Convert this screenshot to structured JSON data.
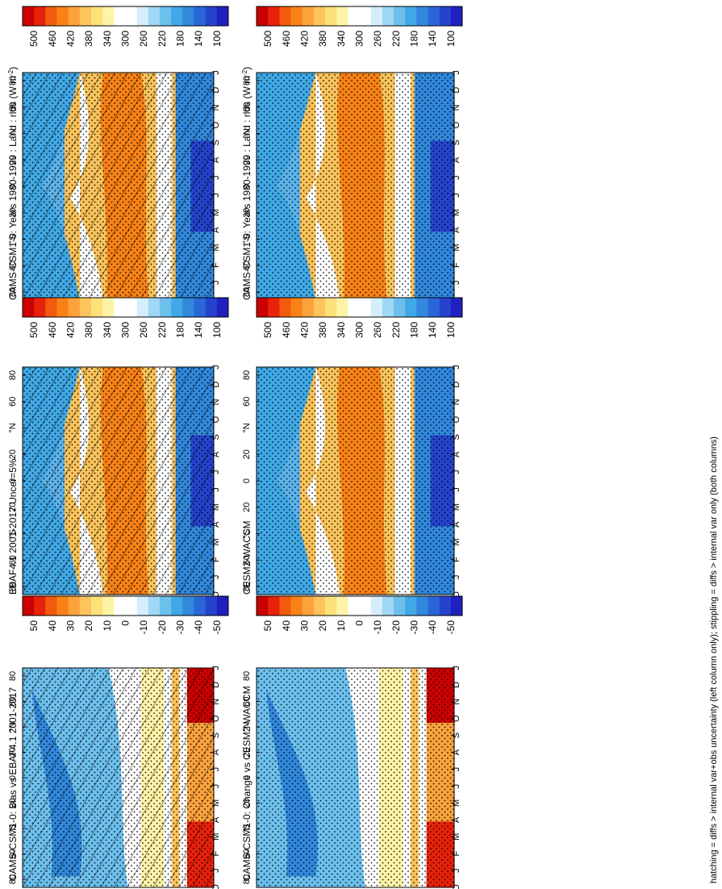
{
  "footnote": "hatching = diffs > internal var+obs uncertainty (left column only); stippling = diffs > internal var only (both columns)",
  "palette_abs": [
    "#cc0000",
    "#e8210a",
    "#f25a0e",
    "#f98216",
    "#fba23c",
    "#fdc45b",
    "#fde07a",
    "#fef3a7",
    "#ffffff",
    "#ffffff",
    "#d6eefc",
    "#9fd7f4",
    "#6cc0ee",
    "#40a8e6",
    "#3188dc",
    "#2a66d8",
    "#2543cf",
    "#2020c0"
  ],
  "palette_diff": [
    "#cc0000",
    "#e8210a",
    "#f25a0e",
    "#f98216",
    "#fba23c",
    "#fdc45b",
    "#fde07a",
    "#fef3a7",
    "#ffffff",
    "#ffffff",
    "#d6eefc",
    "#9fd7f4",
    "#6cc0ee",
    "#40a8e6",
    "#3188dc",
    "#2a66d8",
    "#2543cf",
    "#2020c0"
  ],
  "axes": {
    "month_labels": [
      "D",
      "J",
      "F",
      "M",
      "A",
      "M",
      "J",
      "J",
      "A",
      "S",
      "O",
      "N",
      "D",
      "J"
    ],
    "lat_labels": [
      "80",
      "60",
      "°N",
      "20",
      "0",
      "20",
      "°S",
      "60",
      "80"
    ]
  },
  "chart_data": [
    {
      "type": "heatmap",
      "title": "CAMS-CSM1-0: Years 1980-1999 : Land : rlds (W m",
      "title_sup": "-2",
      "title_end": ")",
      "colorbar_labels": [
        "500",
        "460",
        "420",
        "380",
        "340",
        "300",
        "260",
        "220",
        "180",
        "140",
        "100"
      ],
      "variant": "abs",
      "pattern": "hatch"
    },
    {
      "type": "heatmap",
      "title": "CAMS-CSM1-0: Years 1980-1999 : Land : rlds (W m",
      "title_sup": "-2",
      "title_end": ")",
      "colorbar_labels": [
        "500",
        "460",
        "420",
        "380",
        "340",
        "300",
        "260",
        "220",
        "180",
        "140",
        "100"
      ],
      "variant": "abs",
      "pattern": "stipple"
    },
    {
      "type": "heatmap",
      "title": "EBAF4.1 2001-2017 Uncer=5%",
      "colorbar_labels": [
        "500",
        "460",
        "420",
        "380",
        "340",
        "300",
        "260",
        "220",
        "180",
        "140",
        "100"
      ],
      "variant": "abs",
      "pattern": "hatch"
    },
    {
      "type": "heatmap",
      "title": "CESM2-WACCM",
      "colorbar_labels": [
        "500",
        "460",
        "420",
        "380",
        "340",
        "300",
        "260",
        "220",
        "180",
        "140",
        "100"
      ],
      "variant": "abs",
      "pattern": "stipple"
    },
    {
      "type": "heatmap",
      "title": "CAMS-CSM1-0: Bias vs EBAF4.1 2001-2017",
      "colorbar_labels": [
        "50",
        "40",
        "30",
        "20",
        "10",
        "0",
        "-10",
        "-20",
        "-30",
        "-40",
        "-50"
      ],
      "variant": "diff",
      "pattern": "hatch"
    },
    {
      "type": "heatmap",
      "title": "CAMS-CSM1-0: Change vs CESM2-WACCM",
      "colorbar_labels": [
        "50",
        "40",
        "30",
        "20",
        "10",
        "0",
        "-10",
        "-20",
        "-30",
        "-40",
        "-50"
      ],
      "variant": "diff",
      "pattern": "stipple"
    }
  ]
}
